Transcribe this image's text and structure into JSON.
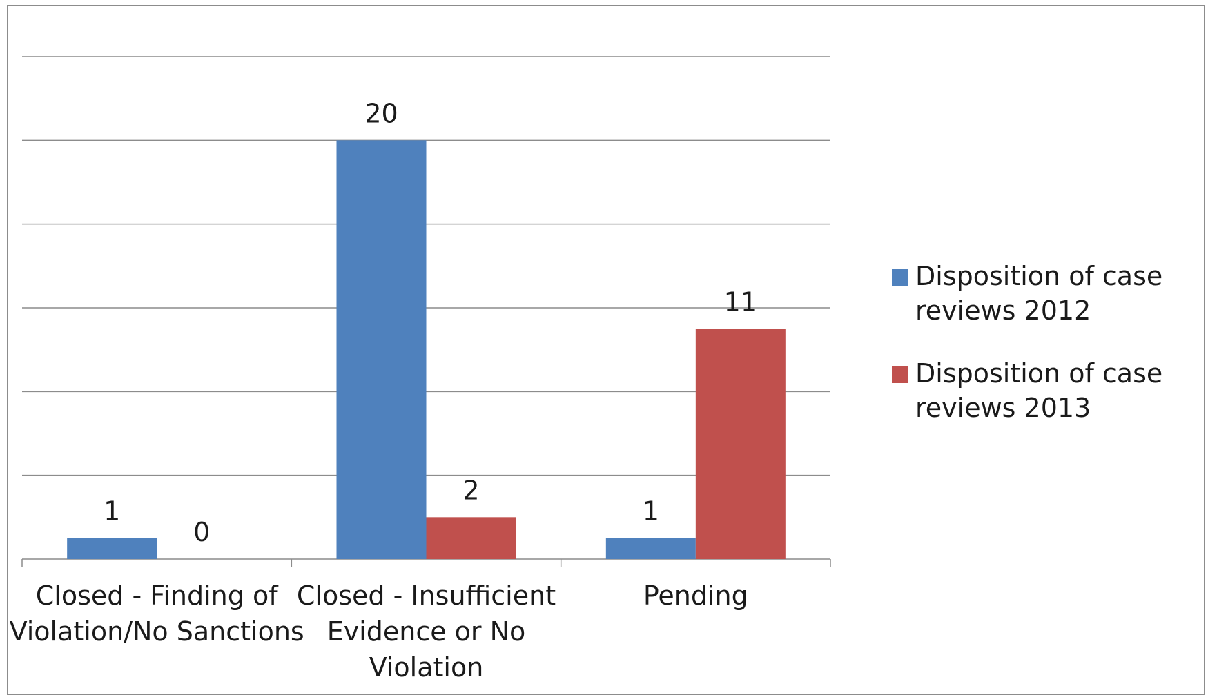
{
  "chart_data": {
    "type": "bar",
    "title": "",
    "xlabel": "",
    "ylabel": "",
    "ylim": [
      0,
      24
    ],
    "grid": true,
    "legend_position": "right",
    "categories": [
      [
        "Closed - Finding of",
        "Violation/No Sanctions"
      ],
      [
        "Closed - Insufficient",
        "Evidence or No",
        "Violation"
      ],
      [
        "Pending"
      ]
    ],
    "series": [
      {
        "name": [
          "Disposition of case",
          "reviews 2012"
        ],
        "values": [
          1,
          20,
          1
        ],
        "color": "#4f81bd"
      },
      {
        "name": [
          "Disposition of case",
          "reviews 2013"
        ],
        "values": [
          0,
          2,
          11
        ],
        "color": "#c0504d"
      }
    ]
  }
}
